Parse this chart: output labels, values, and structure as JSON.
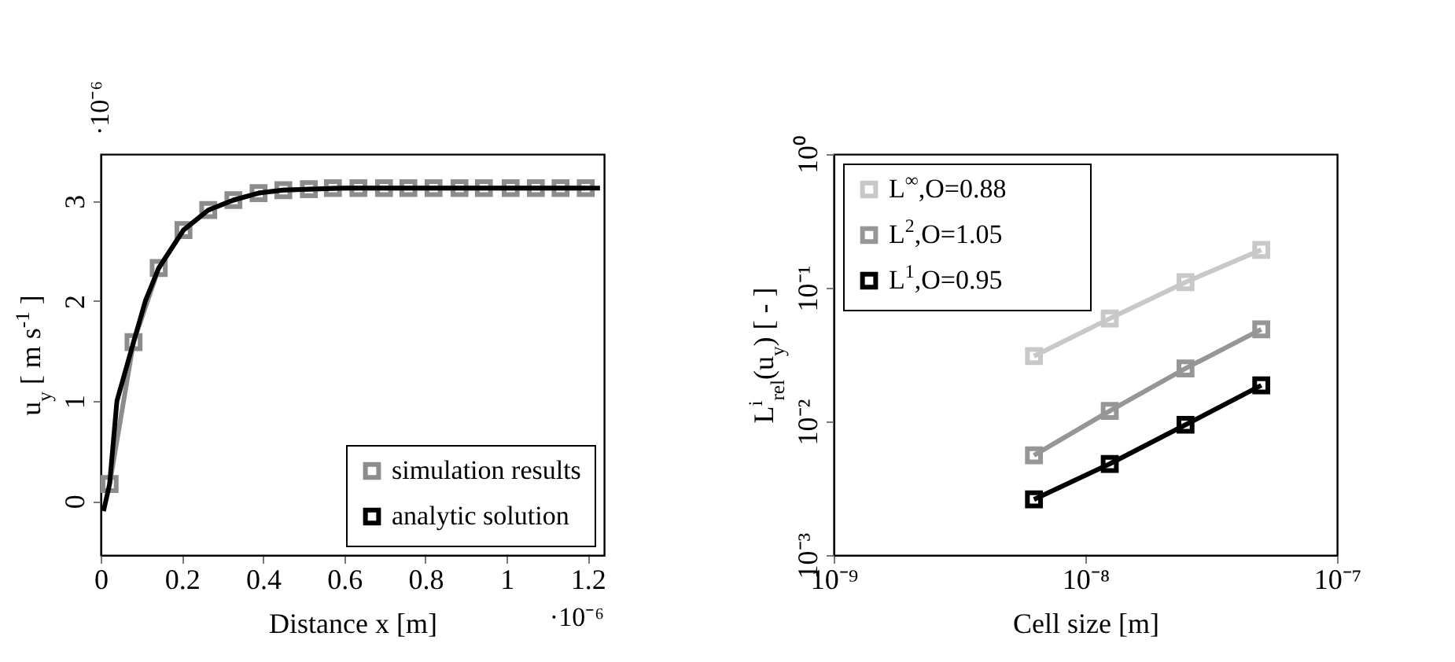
{
  "chart_data": [
    {
      "type": "line",
      "xlabel": "Distance x [m]",
      "ylabel": "u$_{y}$ [ m s$^{-1}$ ]",
      "xlim": [
        0,
        1.24
      ],
      "ylim": [
        -0.54,
        3.47
      ],
      "xticks": [
        0,
        0.2,
        0.4,
        0.6,
        0.8,
        1,
        1.2
      ],
      "yticks": [
        0,
        1,
        2,
        3
      ],
      "grid": false,
      "legend": "bottom right",
      "annotations": [
        "·10⁻⁶",
        "·10⁻⁶"
      ],
      "series": [
        {
          "name": "simulation results",
          "color": "#8c8c8c",
          "marker": "square",
          "x": [
            0.022,
            0.081,
            0.143,
            0.204,
            0.265,
            0.327,
            0.389,
            0.45,
            0.513,
            0.572,
            0.635,
            0.698,
            0.758,
            0.82,
            0.884,
            0.944,
            1.01,
            1.072,
            1.133,
            1.195
          ],
          "values": [
            0.17,
            1.59,
            2.33,
            2.71,
            2.91,
            3.01,
            3.08,
            3.11,
            3.12,
            3.13,
            3.13,
            3.13,
            3.13,
            3.13,
            3.13,
            3.13,
            3.13,
            3.13,
            3.13,
            3.13
          ]
        },
        {
          "name": "analytic solution",
          "color": "#000000",
          "marker": "none",
          "x": [
            0.007,
            0.022,
            0.04,
            0.081,
            0.11,
            0.143,
            0.204,
            0.265,
            0.327,
            0.389,
            0.45,
            0.6,
            1.23
          ],
          "values": [
            -0.1,
            0.17,
            1.0,
            1.59,
            2.0,
            2.33,
            2.71,
            2.91,
            3.01,
            3.08,
            3.11,
            3.13,
            3.13
          ]
        }
      ]
    },
    {
      "type": "line",
      "xlabel": "Cell size [m]",
      "ylabel": "L$^{i}$$_{rel}$(u$_{y}$) [ - ]",
      "log": "xy",
      "xlim": [
        1e-09,
        1e-07
      ],
      "ylim": [
        0.001,
        1
      ],
      "xticks": [
        {
          "value": 1e-09,
          "label": "10⁻⁹"
        },
        {
          "value": 1e-08,
          "label": "10⁻⁸"
        },
        {
          "value": 1e-07,
          "label": "10⁻⁷"
        }
      ],
      "yticks": [
        {
          "value": 0.001,
          "label": "10⁻³"
        },
        {
          "value": 0.01,
          "label": "10⁻²"
        },
        {
          "value": 0.1,
          "label": "10⁻¹"
        },
        {
          "value": 1,
          "label": "10⁰"
        }
      ],
      "grid": false,
      "legend": "top left",
      "marker": "square",
      "x": [
        6.25e-09,
        1.25e-08,
        2.5e-08,
        5e-08
      ],
      "series": [
        {
          "name": "L$^{∞}$,O=0.88",
          "color": "#c8c8c8",
          "values": [
            0.0308,
            0.0589,
            0.11,
            0.192
          ]
        },
        {
          "name": "L$^{2}$,O=1.05",
          "color": "#969696",
          "values": [
            0.00557,
            0.012,
            0.0249,
            0.0489
          ]
        },
        {
          "name": "L$^{1}$,O=0.95",
          "color": "#000000",
          "values": [
            0.00261,
            0.00481,
            0.00944,
            0.0186
          ]
        }
      ]
    }
  ]
}
